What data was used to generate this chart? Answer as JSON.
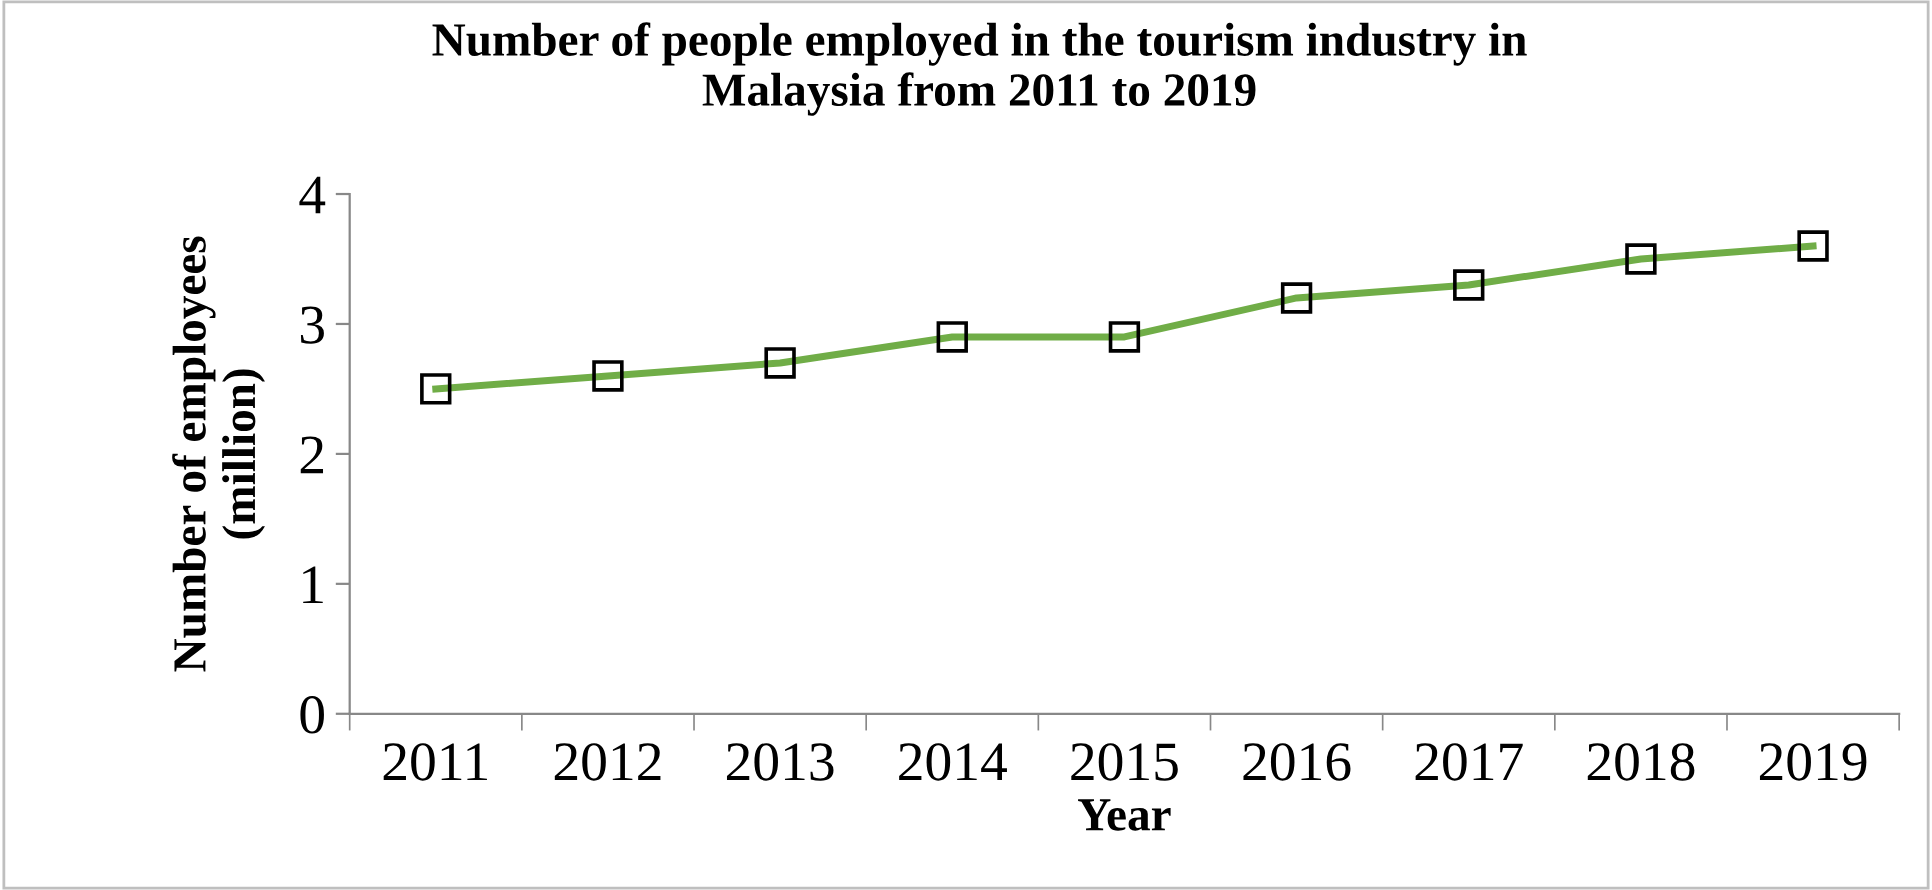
{
  "chart_data": {
    "type": "line",
    "title": "Number of people employed in the tourism industry in\nMalaysia from 2011 to 2019",
    "xlabel": "Year",
    "ylabel": "Number of employees\n(million)",
    "categories": [
      "2011",
      "2012",
      "2013",
      "2014",
      "2015",
      "2016",
      "2017",
      "2018",
      "2019"
    ],
    "series": [
      {
        "color": "#70ad47",
        "values": [
          2.5,
          2.6,
          2.7,
          2.9,
          2.9,
          3.2,
          3.3,
          3.5,
          3.6
        ]
      }
    ],
    "ylim": [
      0,
      4
    ],
    "yticks": [
      0,
      1,
      2,
      3,
      4
    ],
    "grid": false,
    "marker": "square",
    "line_style": "solid"
  }
}
